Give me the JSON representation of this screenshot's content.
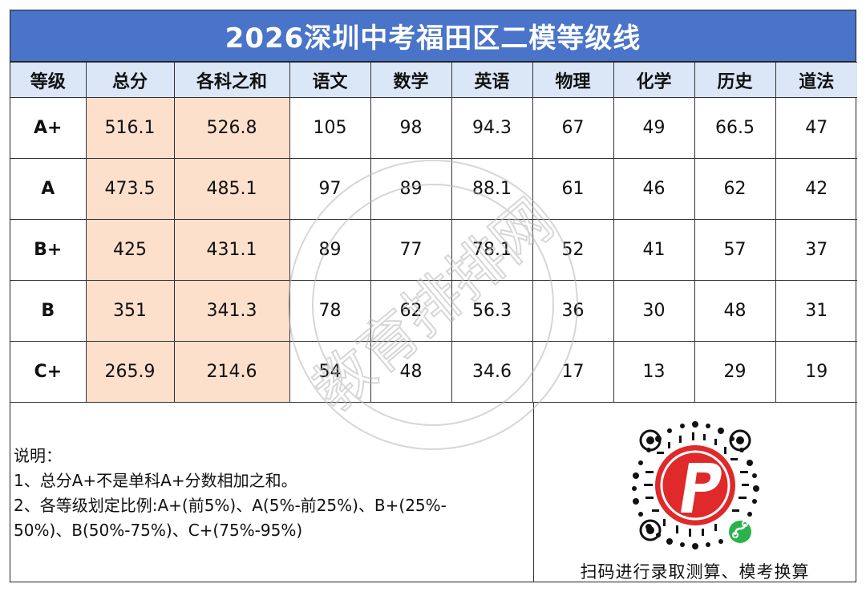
{
  "title": "2026深圳中考福田区二模等级线",
  "headers": [
    "等级",
    "总分",
    "各科之和",
    "语文",
    "数学",
    "英语",
    "物理",
    "化学",
    "历史",
    "道法"
  ],
  "rows": [
    {
      "level": "A+",
      "cells": [
        "516.1",
        "526.8",
        "105",
        "98",
        "94.3",
        "67",
        "49",
        "66.5",
        "47"
      ]
    },
    {
      "level": "A",
      "cells": [
        "473.5",
        "485.1",
        "97",
        "89",
        "88.1",
        "61",
        "46",
        "62",
        "42"
      ]
    },
    {
      "level": "B+",
      "cells": [
        "425",
        "431.1",
        "89",
        "77",
        "78.1",
        "52",
        "41",
        "57",
        "37"
      ]
    },
    {
      "level": "B",
      "cells": [
        "351",
        "341.3",
        "78",
        "62",
        "56.3",
        "36",
        "30",
        "48",
        "31"
      ]
    },
    {
      "level": "C+",
      "cells": [
        "265.9",
        "214.6",
        "54",
        "48",
        "34.6",
        "17",
        "13",
        "29",
        "19"
      ]
    }
  ],
  "notes": {
    "heading": "说明：",
    "line1": "1、总分A+不是单科A+分数相加之和。",
    "line2": "2、各等级划定比例:A+(前5%)、A(5%-前25%)、B+(25%-",
    "line3": "50%)、B(50%-75%)、C+(75%-95%)"
  },
  "qr": {
    "caption": "扫码进行录取测算、模考换算",
    "logo_icon": "brand-p-logo-icon",
    "mini_program_icon": "wechat-mini-program-icon"
  },
  "watermark": "教育排排网",
  "colors": {
    "title_bg": "#4a74c9",
    "header_bg": "#dbe6f6",
    "highlight_bg": "#fde0cc",
    "logo_red": "#e0292a",
    "mini_program_green": "#2bb24c"
  }
}
